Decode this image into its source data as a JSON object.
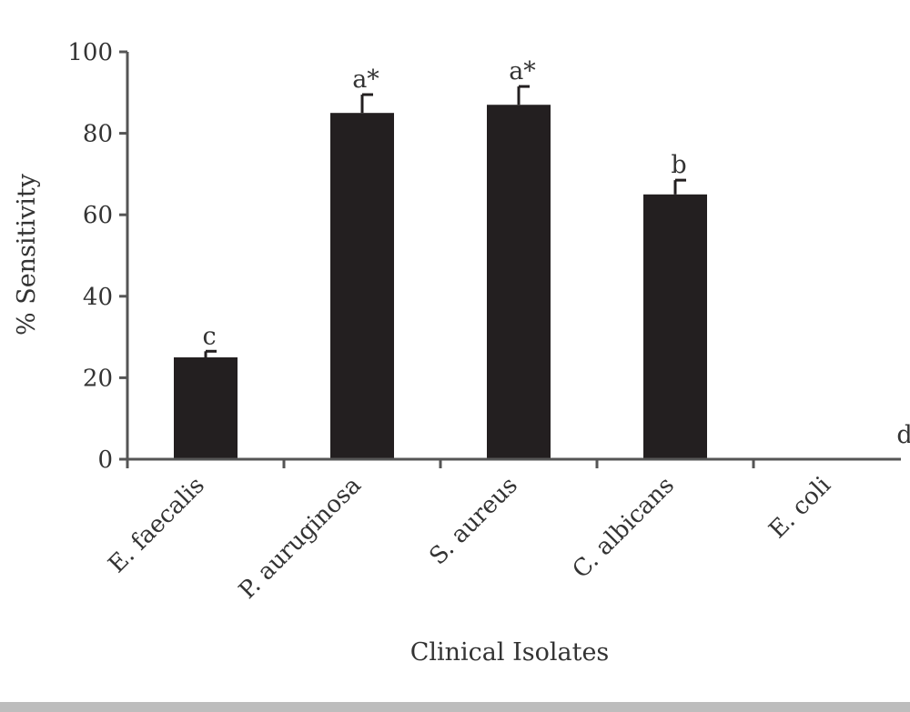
{
  "chart_data": {
    "type": "bar",
    "title": "",
    "xlabel": "Clinical Isolates",
    "ylabel": "% Sensitivity",
    "ylim": [
      0,
      100
    ],
    "yticks": [
      0,
      20,
      40,
      60,
      80,
      100
    ],
    "grid": false,
    "categories": [
      "E. faecalis",
      "P. auruginosa",
      "S. aureus",
      "C. albicans",
      "E. coli"
    ],
    "values": [
      25,
      85,
      87,
      65,
      0
    ],
    "errors": [
      1.5,
      4.5,
      4.5,
      3.5,
      0
    ],
    "labels": [
      "c",
      "a*",
      "a*",
      "b",
      "d"
    ],
    "colors": {
      "bar": "#231f20",
      "axis": "#555555",
      "footer_rule": "#bdbdbd"
    }
  }
}
